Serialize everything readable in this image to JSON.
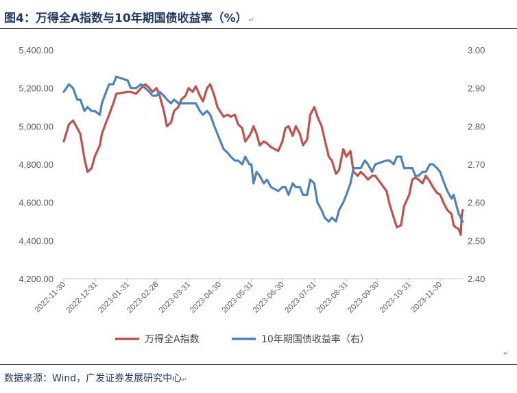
{
  "title": "图4：万得全A指数与10年期国债收益率（%）",
  "source": "数据来源：Wind，广发证券发展研究中心",
  "return_mark": "↵",
  "colors": {
    "wind_a": "#c0504d",
    "bond_10y": "#4f81bd",
    "title": "#1f3864"
  },
  "chart_data": {
    "type": "line",
    "title": "",
    "x_tick_labels": [
      "2022-11-30",
      "2022-12-31",
      "2023-01-31",
      "2023-02-28",
      "2023-03-31",
      "2023-04-30",
      "2023-05-31",
      "2023-06-30",
      "2023-07-31",
      "2023-08-31",
      "2023-09-30",
      "2023-10-31",
      "2023-11-30"
    ],
    "x_range": [
      "2022-11-30",
      "2023-12-22"
    ],
    "y_left": {
      "min": 4200,
      "max": 5400,
      "step": 200,
      "tick_labels": [
        "4,200.00",
        "4,400.00",
        "4,600.00",
        "4,800.00",
        "5,000.00",
        "5,200.00",
        "5,400.00"
      ]
    },
    "y_right": {
      "min": 2.4,
      "max": 3.0,
      "step": 0.1,
      "tick_labels": [
        "2.40",
        "2.50",
        "2.60",
        "2.70",
        "2.80",
        "2.90",
        "3.00"
      ]
    },
    "series": [
      {
        "name": "万得全A指数",
        "axis": "left",
        "color": "#c0504d",
        "points": [
          [
            "2022-11-30",
            4920
          ],
          [
            "2022-12-05",
            5010
          ],
          [
            "2022-12-09",
            5030
          ],
          [
            "2022-12-13",
            4990
          ],
          [
            "2022-12-16",
            4960
          ],
          [
            "2022-12-20",
            4830
          ],
          [
            "2022-12-23",
            4760
          ],
          [
            "2022-12-27",
            4780
          ],
          [
            "2022-12-30",
            4840
          ],
          [
            "2023-01-04",
            4900
          ],
          [
            "2023-01-06",
            4960
          ],
          [
            "2023-01-10",
            5020
          ],
          [
            "2023-01-13",
            5060
          ],
          [
            "2023-01-17",
            5120
          ],
          [
            "2023-01-20",
            5170
          ],
          [
            "2023-01-31",
            5180
          ],
          [
            "2023-02-03",
            5180
          ],
          [
            "2023-02-08",
            5170
          ],
          [
            "2023-02-13",
            5200
          ],
          [
            "2023-02-17",
            5220
          ],
          [
            "2023-02-21",
            5200
          ],
          [
            "2023-02-24",
            5180
          ],
          [
            "2023-02-28",
            5200
          ],
          [
            "2023-03-03",
            5160
          ],
          [
            "2023-03-07",
            5080
          ],
          [
            "2023-03-10",
            5000
          ],
          [
            "2023-03-14",
            5020
          ],
          [
            "2023-03-17",
            5080
          ],
          [
            "2023-03-21",
            5100
          ],
          [
            "2023-03-24",
            5140
          ],
          [
            "2023-03-28",
            5160
          ],
          [
            "2023-03-31",
            5200
          ],
          [
            "2023-04-04",
            5180
          ],
          [
            "2023-04-07",
            5210
          ],
          [
            "2023-04-11",
            5160
          ],
          [
            "2023-04-14",
            5130
          ],
          [
            "2023-04-18",
            5200
          ],
          [
            "2023-04-21",
            5220
          ],
          [
            "2023-04-25",
            5160
          ],
          [
            "2023-04-28",
            5100
          ],
          [
            "2023-05-04",
            5050
          ],
          [
            "2023-05-08",
            5060
          ],
          [
            "2023-05-11",
            5050
          ],
          [
            "2023-05-15",
            5060
          ],
          [
            "2023-05-18",
            5010
          ],
          [
            "2023-05-22",
            4990
          ],
          [
            "2023-05-25",
            4920
          ],
          [
            "2023-05-29",
            4950
          ],
          [
            "2023-05-31",
            4970
          ],
          [
            "2023-06-02",
            5000
          ],
          [
            "2023-06-05",
            4960
          ],
          [
            "2023-06-08",
            4900
          ],
          [
            "2023-06-12",
            4920
          ],
          [
            "2023-06-15",
            4910
          ],
          [
            "2023-06-19",
            4890
          ],
          [
            "2023-06-26",
            4870
          ],
          [
            "2023-06-30",
            4920
          ],
          [
            "2023-07-03",
            4990
          ],
          [
            "2023-07-06",
            5000
          ],
          [
            "2023-07-10",
            4950
          ],
          [
            "2023-07-13",
            5000
          ],
          [
            "2023-07-17",
            4960
          ],
          [
            "2023-07-20",
            4900
          ],
          [
            "2023-07-24",
            4930
          ],
          [
            "2023-07-27",
            5060
          ],
          [
            "2023-07-31",
            5100
          ],
          [
            "2023-08-03",
            5050
          ],
          [
            "2023-08-07",
            5000
          ],
          [
            "2023-08-10",
            4930
          ],
          [
            "2023-08-14",
            4840
          ],
          [
            "2023-08-17",
            4820
          ],
          [
            "2023-08-21",
            4750
          ],
          [
            "2023-08-24",
            4770
          ],
          [
            "2023-08-28",
            4880
          ],
          [
            "2023-08-31",
            4840
          ],
          [
            "2023-09-04",
            4870
          ],
          [
            "2023-09-07",
            4760
          ],
          [
            "2023-09-11",
            4740
          ],
          [
            "2023-09-14",
            4760
          ],
          [
            "2023-09-18",
            4740
          ],
          [
            "2023-09-21",
            4720
          ],
          [
            "2023-09-25",
            4740
          ],
          [
            "2023-09-28",
            4740
          ],
          [
            "2023-10-09",
            4660
          ],
          [
            "2023-10-12",
            4590
          ],
          [
            "2023-10-16",
            4520
          ],
          [
            "2023-10-19",
            4470
          ],
          [
            "2023-10-23",
            4480
          ],
          [
            "2023-10-26",
            4580
          ],
          [
            "2023-10-31",
            4640
          ],
          [
            "2023-11-03",
            4720
          ],
          [
            "2023-11-06",
            4730
          ],
          [
            "2023-11-09",
            4720
          ],
          [
            "2023-11-13",
            4700
          ],
          [
            "2023-11-16",
            4740
          ],
          [
            "2023-11-20",
            4710
          ],
          [
            "2023-11-23",
            4680
          ],
          [
            "2023-11-27",
            4650
          ],
          [
            "2023-11-30",
            4640
          ],
          [
            "2023-12-04",
            4590
          ],
          [
            "2023-12-07",
            4560
          ],
          [
            "2023-12-11",
            4540
          ],
          [
            "2023-12-13",
            4480
          ],
          [
            "2023-12-15",
            4470
          ],
          [
            "2023-12-18",
            4460
          ],
          [
            "2023-12-20",
            4430
          ],
          [
            "2023-12-21",
            4540
          ],
          [
            "2023-12-22",
            4560
          ]
        ]
      },
      {
        "name": "10年期国债收益率（右）",
        "axis": "right",
        "color": "#4f81bd",
        "points": [
          [
            "2022-11-30",
            2.89
          ],
          [
            "2022-12-05",
            2.91
          ],
          [
            "2022-12-09",
            2.9
          ],
          [
            "2022-12-13",
            2.87
          ],
          [
            "2022-12-16",
            2.87
          ],
          [
            "2022-12-20",
            2.84
          ],
          [
            "2022-12-23",
            2.85
          ],
          [
            "2022-12-27",
            2.84
          ],
          [
            "2022-12-30",
            2.84
          ],
          [
            "2023-01-04",
            2.83
          ],
          [
            "2023-01-06",
            2.86
          ],
          [
            "2023-01-10",
            2.89
          ],
          [
            "2023-01-13",
            2.91
          ],
          [
            "2023-01-17",
            2.91
          ],
          [
            "2023-01-20",
            2.93
          ],
          [
            "2023-01-31",
            2.92
          ],
          [
            "2023-02-03",
            2.9
          ],
          [
            "2023-02-08",
            2.9
          ],
          [
            "2023-02-13",
            2.91
          ],
          [
            "2023-02-17",
            2.9
          ],
          [
            "2023-02-21",
            2.89
          ],
          [
            "2023-02-24",
            2.88
          ],
          [
            "2023-02-28",
            2.88
          ],
          [
            "2023-03-03",
            2.89
          ],
          [
            "2023-03-07",
            2.88
          ],
          [
            "2023-03-10",
            2.87
          ],
          [
            "2023-03-14",
            2.86
          ],
          [
            "2023-03-17",
            2.87
          ],
          [
            "2023-03-21",
            2.86
          ],
          [
            "2023-03-24",
            2.86
          ],
          [
            "2023-03-28",
            2.86
          ],
          [
            "2023-03-31",
            2.86
          ],
          [
            "2023-04-04",
            2.86
          ],
          [
            "2023-04-07",
            2.86
          ],
          [
            "2023-04-11",
            2.84
          ],
          [
            "2023-04-14",
            2.83
          ],
          [
            "2023-04-18",
            2.84
          ],
          [
            "2023-04-21",
            2.83
          ],
          [
            "2023-04-25",
            2.8
          ],
          [
            "2023-04-28",
            2.78
          ],
          [
            "2023-05-04",
            2.74
          ],
          [
            "2023-05-08",
            2.73
          ],
          [
            "2023-05-11",
            2.72
          ],
          [
            "2023-05-15",
            2.71
          ],
          [
            "2023-05-18",
            2.71
          ],
          [
            "2023-05-22",
            2.7
          ],
          [
            "2023-05-25",
            2.72
          ],
          [
            "2023-05-29",
            2.7
          ],
          [
            "2023-05-31",
            2.7
          ],
          [
            "2023-06-02",
            2.65
          ],
          [
            "2023-06-05",
            2.68
          ],
          [
            "2023-06-08",
            2.67
          ],
          [
            "2023-06-12",
            2.65
          ],
          [
            "2023-06-15",
            2.66
          ],
          [
            "2023-06-19",
            2.64
          ],
          [
            "2023-06-26",
            2.63
          ],
          [
            "2023-06-30",
            2.64
          ],
          [
            "2023-07-03",
            2.64
          ],
          [
            "2023-07-06",
            2.62
          ],
          [
            "2023-07-10",
            2.65
          ],
          [
            "2023-07-13",
            2.64
          ],
          [
            "2023-07-17",
            2.64
          ],
          [
            "2023-07-20",
            2.62
          ],
          [
            "2023-07-24",
            2.62
          ],
          [
            "2023-07-27",
            2.66
          ],
          [
            "2023-07-31",
            2.65
          ],
          [
            "2023-08-03",
            2.6
          ],
          [
            "2023-08-07",
            2.58
          ],
          [
            "2023-08-10",
            2.56
          ],
          [
            "2023-08-14",
            2.55
          ],
          [
            "2023-08-17",
            2.56
          ],
          [
            "2023-08-21",
            2.55
          ],
          [
            "2023-08-24",
            2.58
          ],
          [
            "2023-08-28",
            2.6
          ],
          [
            "2023-08-31",
            2.62
          ],
          [
            "2023-09-04",
            2.65
          ],
          [
            "2023-09-07",
            2.69
          ],
          [
            "2023-09-11",
            2.69
          ],
          [
            "2023-09-14",
            2.69
          ],
          [
            "2023-09-18",
            2.71
          ],
          [
            "2023-09-21",
            2.7
          ],
          [
            "2023-09-25",
            2.68
          ],
          [
            "2023-09-28",
            2.7
          ],
          [
            "2023-10-09",
            2.71
          ],
          [
            "2023-10-12",
            2.71
          ],
          [
            "2023-10-16",
            2.7
          ],
          [
            "2023-10-19",
            2.72
          ],
          [
            "2023-10-23",
            2.72
          ],
          [
            "2023-10-26",
            2.69
          ],
          [
            "2023-10-31",
            2.69
          ],
          [
            "2023-11-03",
            2.69
          ],
          [
            "2023-11-06",
            2.67
          ],
          [
            "2023-11-09",
            2.67
          ],
          [
            "2023-11-13",
            2.68
          ],
          [
            "2023-11-16",
            2.68
          ],
          [
            "2023-11-20",
            2.7
          ],
          [
            "2023-11-23",
            2.7
          ],
          [
            "2023-11-27",
            2.69
          ],
          [
            "2023-11-30",
            2.68
          ],
          [
            "2023-12-04",
            2.65
          ],
          [
            "2023-12-07",
            2.63
          ],
          [
            "2023-12-11",
            2.61
          ],
          [
            "2023-12-13",
            2.62
          ],
          [
            "2023-12-15",
            2.6
          ],
          [
            "2023-12-18",
            2.57
          ],
          [
            "2023-12-20",
            2.56
          ],
          [
            "2023-12-21",
            2.55
          ],
          [
            "2023-12-22",
            2.55
          ]
        ]
      }
    ],
    "legend_position": "bottom",
    "grid": false
  }
}
